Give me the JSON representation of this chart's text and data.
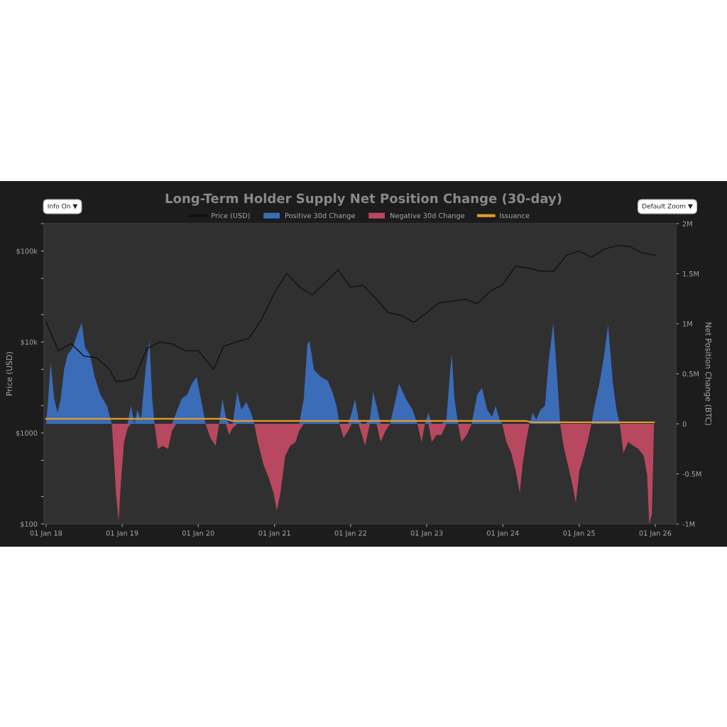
{
  "chart_data": {
    "type": "area",
    "title": "Long-Term Holder Supply Net Position Change (30-day)",
    "ylabel": "Price (USD)",
    "y2label": "Net Position Change (BTC)",
    "annotations": [
      "Info On ▼",
      "Default Zoom ▼"
    ],
    "legend": "top",
    "log": "y",
    "grid": false,
    "xlim": [
      "2017-12-22",
      "2026-04-10"
    ],
    "xticks": [
      {
        "value": "2018-01-01",
        "label": "01 Jan 18"
      },
      {
        "value": "2019-01-01",
        "label": "01 Jan 19"
      },
      {
        "value": "2020-01-01",
        "label": "01 Jan 20"
      },
      {
        "value": "2021-01-01",
        "label": "01 Jan 21"
      },
      {
        "value": "2022-01-01",
        "label": "01 Jan 22"
      },
      {
        "value": "2023-01-01",
        "label": "01 Jan 23"
      },
      {
        "value": "2024-01-01",
        "label": "01 Jan 24"
      },
      {
        "value": "2025-01-01",
        "label": "01 Jan 25"
      },
      {
        "value": "2026-01-01",
        "label": "01 Jan 26"
      }
    ],
    "ylim": [
      100,
      200000
    ],
    "yticks": [
      {
        "value": 100,
        "label": "$100"
      },
      {
        "value": 200,
        "label": null
      },
      {
        "value": 500,
        "label": null
      },
      {
        "value": 1000,
        "label": "$1000"
      },
      {
        "value": 2000,
        "label": null
      },
      {
        "value": 5000,
        "label": null
      },
      {
        "value": 10000,
        "label": "$10k"
      },
      {
        "value": 20000,
        "label": null
      },
      {
        "value": 50000,
        "label": null
      },
      {
        "value": 100000,
        "label": "$100k"
      },
      {
        "value": 200000,
        "label": null
      }
    ],
    "y2lim": [
      -1,
      2
    ],
    "y2ticks": [
      {
        "value": -1,
        "label": "-1M"
      },
      {
        "value": -0.5,
        "label": "-0.5M"
      },
      0,
      {
        "value": 0.5,
        "label": "0.5M"
      },
      {
        "value": 1,
        "label": "1M"
      },
      {
        "value": 1.5,
        "label": "1.5M"
      },
      {
        "value": 2,
        "label": "2M"
      }
    ],
    "x": [
      "2018-01-01",
      "2018-01-10",
      "2018-01-23",
      "2018-02-09",
      "2018-02-25",
      "2018-03-12",
      "2018-03-28",
      "2018-04-14",
      "2018-05-09",
      "2018-06-02",
      "2018-06-21",
      "2018-07-07",
      "2018-07-30",
      "2018-08-22",
      "2018-09-18",
      "2018-10-20",
      "2018-11-12",
      "2018-11-22",
      "2018-12-02",
      "2018-12-15",
      "2018-12-25",
      "2019-01-10",
      "2019-01-27",
      "2019-02-12",
      "2019-02-28",
      "2019-03-15",
      "2019-04-01",
      "2019-04-23",
      "2019-05-12",
      "2019-05-25",
      "2019-06-05",
      "2019-06-21",
      "2019-07-14",
      "2019-08-09",
      "2019-08-28",
      "2019-09-17",
      "2019-10-13",
      "2019-11-09",
      "2019-12-01",
      "2019-12-24",
      "2020-01-20",
      "2020-02-05",
      "2020-02-28",
      "2020-03-24",
      "2020-04-10",
      "2020-04-26",
      "2020-05-12",
      "2020-05-28",
      "2020-06-14",
      "2020-07-06",
      "2020-07-26",
      "2020-08-18",
      "2020-09-10",
      "2020-09-26",
      "2020-10-12",
      "2020-11-08",
      "2020-12-04",
      "2020-12-27",
      "2021-01-12",
      "2021-01-29",
      "2021-02-21",
      "2021-03-17",
      "2021-04-12",
      "2021-04-29",
      "2021-05-21",
      "2021-06-07",
      "2021-06-17",
      "2021-07-09",
      "2021-08-11",
      "2021-09-13",
      "2021-10-05",
      "2021-10-25",
      "2021-11-08",
      "2021-11-28",
      "2021-12-20",
      "2022-01-06",
      "2022-01-22",
      "2022-02-08",
      "2022-02-24",
      "2022-03-11",
      "2022-04-03",
      "2022-04-19",
      "2022-05-05",
      "2022-05-25",
      "2022-06-17",
      "2022-07-09",
      "2022-07-29",
      "2022-08-21",
      "2022-09-23",
      "2022-10-25",
      "2022-11-17",
      "2022-12-07",
      "2022-12-23",
      "2023-01-09",
      "2023-01-25",
      "2023-02-17",
      "2023-03-13",
      "2023-04-05",
      "2023-04-21",
      "2023-05-01",
      "2023-05-14",
      "2023-05-31",
      "2023-06-16",
      "2023-07-12",
      "2023-08-04",
      "2023-08-31",
      "2023-09-23",
      "2023-10-18",
      "2023-11-10",
      "2023-11-27",
      "2023-12-16",
      "2023-12-29",
      "2024-01-18",
      "2024-02-10",
      "2024-03-03",
      "2024-03-22",
      "2024-04-05",
      "2024-04-21",
      "2024-05-07",
      "2024-05-24",
      "2024-06-09",
      "2024-06-29",
      "2024-07-21",
      "2024-08-07",
      "2024-08-30",
      "2024-09-15",
      "2024-10-02",
      "2024-10-18",
      "2024-11-07",
      "2024-11-30",
      "2024-12-16",
      "2025-01-02",
      "2025-01-18",
      "2025-02-10",
      "2025-03-01",
      "2025-03-16",
      "2025-04-08",
      "2025-05-01",
      "2025-05-20",
      "2025-06-12",
      "2025-06-29",
      "2025-07-15",
      "2025-08-01",
      "2025-08-24",
      "2025-09-19",
      "2025-10-12",
      "2025-11-07",
      "2025-11-23",
      "2025-12-03",
      "2025-12-16",
      "2025-12-26"
    ],
    "series": [
      {
        "name": "Price (USD)",
        "type": "line",
        "color": "#111111",
        "x": [
          "2018-01-01",
          "2018-03-01",
          "2018-05-01",
          "2018-07-01",
          "2018-09-01",
          "2018-11-01",
          "2018-12-01",
          "2019-01-01",
          "2019-03-01",
          "2019-05-01",
          "2019-07-01",
          "2019-09-01",
          "2019-11-01",
          "2020-01-01",
          "2020-03-15",
          "2020-05-01",
          "2020-07-01",
          "2020-09-01",
          "2020-11-01",
          "2021-01-01",
          "2021-03-01",
          "2021-05-01",
          "2021-07-01",
          "2021-09-01",
          "2021-11-01",
          "2022-01-01",
          "2022-03-01",
          "2022-05-01",
          "2022-07-01",
          "2022-09-01",
          "2022-11-01",
          "2023-01-01",
          "2023-03-01",
          "2023-05-01",
          "2023-07-01",
          "2023-09-01",
          "2023-11-01",
          "2024-01-01",
          "2024-03-01",
          "2024-05-01",
          "2024-07-01",
          "2024-09-01",
          "2024-11-01",
          "2025-01-01",
          "2025-03-01",
          "2025-05-01",
          "2025-07-01",
          "2025-09-01",
          "2025-11-01",
          "2026-01-01"
        ],
        "values": [
          16700,
          8000,
          9600,
          7000,
          6700,
          5000,
          3700,
          3700,
          4000,
          8500,
          10000,
          9500,
          8000,
          8000,
          5000,
          9000,
          10000,
          11000,
          18000,
          35000,
          57000,
          40000,
          33000,
          45000,
          62000,
          40000,
          42000,
          30000,
          21000,
          19500,
          16500,
          21000,
          27000,
          28000,
          29500,
          26500,
          36000,
          43000,
          68000,
          65000,
          60000,
          60000,
          90000,
          100000,
          85000,
          105000,
          115000,
          112000,
          95000,
          90000
        ]
      },
      {
        "name": "Positive 30d Change",
        "axis": "y2",
        "color": "#3b6cb7",
        "values": [
          0,
          0.22,
          0.61,
          0.25,
          0.11,
          0.25,
          0.54,
          0.69,
          0.76,
          0.91,
          1.01,
          0.76,
          0.69,
          0.47,
          0.29,
          0.18,
          0,
          0,
          0,
          0,
          0,
          0,
          0,
          0.18,
          0,
          0.14,
          0.04,
          0.54,
          0.83,
          0.25,
          0,
          0,
          0,
          0,
          0,
          0.11,
          0.25,
          0.29,
          0.4,
          0.47,
          0.18,
          0,
          0,
          0,
          0,
          0.25,
          0.07,
          0,
          0,
          0.32,
          0.14,
          0.22,
          0.11,
          0,
          0,
          0,
          0,
          0,
          0,
          0,
          0,
          0,
          0,
          0,
          0.25,
          0.79,
          0.83,
          0.54,
          0.47,
          0.43,
          0.32,
          0.18,
          0,
          0,
          0,
          0.11,
          0.25,
          0.04,
          0,
          0,
          0.04,
          0.32,
          0.18,
          0,
          0,
          0,
          0.18,
          0.4,
          0.25,
          0.14,
          0,
          0,
          0,
          0.11,
          0,
          0,
          0,
          0.04,
          0.47,
          0.7,
          0.25,
          0,
          0,
          0,
          0,
          0.29,
          0.36,
          0.14,
          0.07,
          0.18,
          0.04,
          0,
          0,
          0,
          0,
          0,
          0,
          0,
          0,
          0.11,
          0.04,
          0.14,
          0.18,
          0.61,
          1.01,
          0.54,
          0,
          0,
          0,
          0,
          0,
          0,
          0,
          0,
          0,
          0.18,
          0.4,
          0.69,
          0.99,
          0.4,
          0.14,
          0,
          0,
          0,
          0,
          0,
          0,
          0,
          0,
          0,
          0
        ]
      },
      {
        "name": "Negative 30d Change",
        "axis": "y2",
        "color": "#b8485f",
        "values": [
          0,
          0,
          0,
          0,
          0,
          0,
          0,
          0,
          0,
          0,
          0,
          0,
          0,
          0,
          0,
          0,
          0,
          -0.32,
          -0.69,
          -0.97,
          -0.61,
          -0.18,
          -0.04,
          0,
          0,
          0,
          0,
          0,
          0,
          0,
          0,
          -0.25,
          -0.22,
          -0.25,
          -0.07,
          0,
          0,
          0,
          0,
          0,
          0,
          0,
          -0.14,
          -0.22,
          0,
          0,
          0,
          -0.11,
          -0.04,
          0,
          0,
          0,
          0,
          0,
          -0.18,
          -0.4,
          -0.54,
          -0.69,
          -0.87,
          -0.69,
          -0.32,
          -0.22,
          -0.18,
          -0.07,
          0,
          0,
          0,
          0,
          0,
          0,
          0,
          0,
          0,
          -0.14,
          -0.07,
          0,
          0,
          0,
          -0.11,
          -0.22,
          0,
          0,
          0,
          -0.18,
          -0.07,
          0,
          0,
          0,
          0,
          0,
          0,
          -0.18,
          0,
          0,
          -0.18,
          -0.11,
          -0.11,
          0,
          0,
          0,
          0,
          0,
          -0.18,
          -0.11,
          0,
          0,
          0,
          0,
          0,
          0,
          0,
          0,
          -0.18,
          -0.29,
          -0.47,
          -0.69,
          -0.4,
          -0.18,
          0,
          0,
          0,
          0,
          0,
          0,
          0,
          0,
          0,
          -0.22,
          -0.4,
          -0.61,
          -0.79,
          -0.47,
          -0.36,
          -0.18,
          0,
          0,
          0,
          0,
          0,
          0,
          0,
          0,
          -0.29,
          -0.18,
          -0.22,
          -0.25,
          -0.32,
          -0.51,
          -1.0,
          -0.9,
          0
        ]
      },
      {
        "name": "Issuance",
        "type": "line",
        "axis": "y2",
        "color": "#e39a2d",
        "x": [
          "2018-01-01",
          "2020-05-11",
          "2020-06-10",
          "2024-04-20",
          "2024-05-20",
          "2025-12-26"
        ],
        "values": [
          0.05,
          0.05,
          0.03,
          0.03,
          0.015,
          0.015
        ]
      }
    ]
  }
}
